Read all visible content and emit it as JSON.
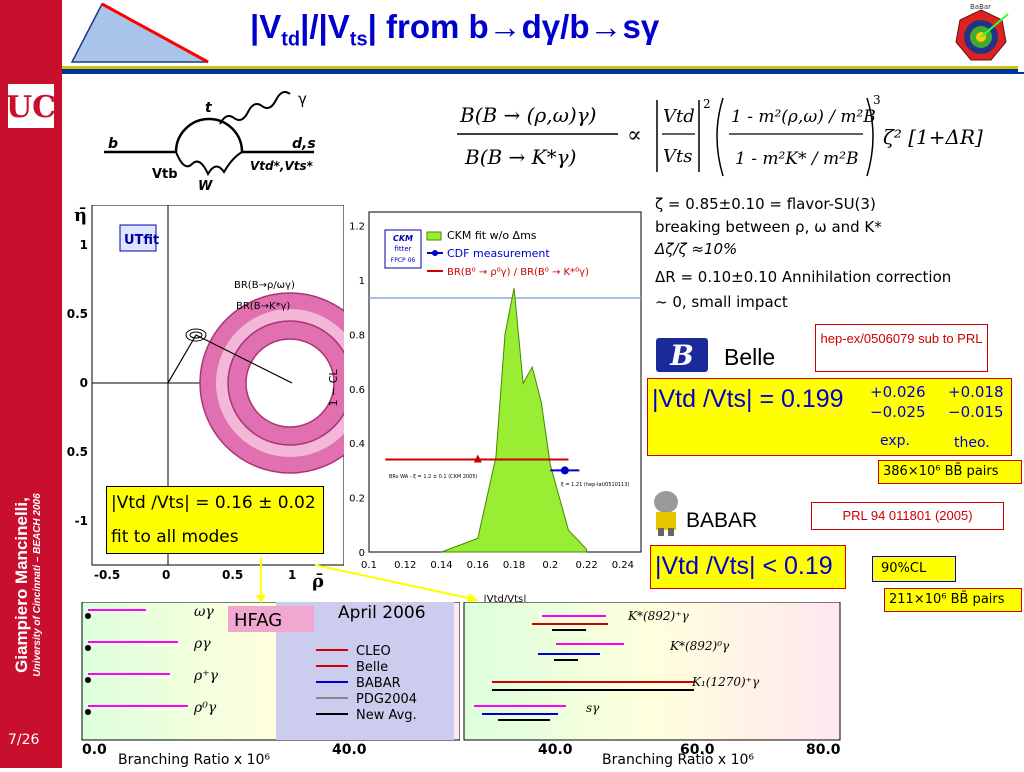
{
  "slide": {
    "title_main": "|V",
    "title_sub1": "td",
    "title_mid": "|/|V",
    "title_sub2": "ts",
    "title_end": "| from b→dγ/b→sγ",
    "author": "Giampiero Mancinelli,",
    "affiliation": "University of Cincinnati – BEACH 2006",
    "page": "7/26",
    "logo_small_text": "BaBar"
  },
  "feynman": {
    "t": "t",
    "gamma": "γ",
    "b": "b",
    "ds": "d,s",
    "vtb": "Vtb",
    "vtdvts": "Vtd*,Vts*",
    "w": "W"
  },
  "formula": {
    "num": "B(B → (ρ,ω)γ)",
    "den": "B(B → K*γ)",
    "prop": "∝",
    "vtd": "Vtd",
    "vts": "Vts",
    "exp": "2",
    "corr_num": "1 - m²(ρ,ω) / m²B",
    "corr_den": "1 - m²K* / m²B",
    "exp3": "3",
    "tail": "ζ² [1+ΔR]"
  },
  "notes": {
    "zeta": "ζ = 0.85±0.10 = flavor-SU(3)",
    "breaking": "breaking between ρ, ω and K*",
    "dzeta": "Δζ/ζ ≈10%",
    "dr": "ΔR = 0.10±0.10 Annihilation correction",
    "impact": "~ 0, small impact"
  },
  "belle": {
    "ref": "hep-ex/0506079 sub to PRL",
    "name": "Belle",
    "result": "|Vtd /Vts| = 0.199",
    "exp_up": "+0.026",
    "exp_dn": "−0.025",
    "th_up": "+0.018",
    "th_dn": "−0.015",
    "exp_lbl": "exp.",
    "th_lbl": "theo.",
    "pairs": "386×10⁶ BB̄ pairs"
  },
  "babar": {
    "name": "BABAR",
    "ref": "PRL 94 011801 (2005)",
    "result": "|Vtd /Vts| < 0.19",
    "cl": "90%CL",
    "pairs": "211×10⁶ BB̄ pairs"
  },
  "utfit": {
    "logo": "UTfit",
    "eta_label": "η̄",
    "rho_label": "ρ̄",
    "legend1": "BR(B→ρ/ωγ)",
    "legend2": "BR(B→K*γ)",
    "yticks": [
      "1",
      "0.5",
      "0",
      "-0.5",
      "-1"
    ],
    "xticks": [
      "-0.5",
      "0",
      "0.5",
      "1"
    ],
    "result": "|Vtd /Vts| = 0.16 ± 0.02",
    "result2": "fit to all modes"
  },
  "ckm": {
    "logo1": "CKM",
    "logo2": "fitter",
    "logo3": "FPCP 06",
    "leg1": "CKM fit w/o Δms",
    "leg2": "CDF measurement",
    "leg3": "BR(B⁰ → ρ⁰γ) / BR(B⁰ → K*⁰γ)",
    "ylabel": "1 − CL",
    "xlabel": "|Vtd/Vts|",
    "note_left": "BRs WA - ξ = 1.2 ± 0.1 (CKM 2005)",
    "note_right": "ξ = 1.21 (hep-lat/0510113)",
    "yticks": [
      "1.2",
      "1",
      "0.8",
      "0.6",
      "0.4",
      "0.2",
      "0"
    ],
    "xticks": [
      "0.1",
      "0.12",
      "0.14",
      "0.16",
      "0.18",
      "0.2",
      "0.22",
      "0.24"
    ]
  },
  "hfag": {
    "label": "HFAG",
    "date": "April 2006",
    "legend": [
      "CLEO",
      "Belle",
      "BABAR",
      "PDG2004",
      "New Avg."
    ],
    "left_modes": [
      "ωγ",
      "ργ",
      "ρ⁺γ",
      "ρ⁰γ"
    ],
    "right_modes": [
      "K*(892)⁺γ",
      "K*(892)⁰γ",
      "K₁(1270)⁺γ",
      "sγ"
    ],
    "xlabel_left": "Branching Ratio x 10⁶",
    "xlabel_right": "Branching Ratio x 10⁶",
    "left_ticks": [
      "0.0",
      "40.0"
    ],
    "right_ticks": [
      "40.0",
      "60.0",
      "80.0"
    ]
  },
  "chart_data": [
    {
      "type": "line",
      "title": "",
      "xlabel": "|Vtd/Vts|",
      "ylabel": "1 − CL",
      "xlim": [
        0.1,
        0.25
      ],
      "ylim": [
        0,
        1.25
      ],
      "series": [
        {
          "name": "CKM fit w/o Δms",
          "x": [
            0.14,
            0.16,
            0.17,
            0.175,
            0.18,
            0.185,
            0.19,
            0.195,
            0.2,
            0.21,
            0.22
          ],
          "y": [
            0.0,
            0.05,
            0.35,
            0.8,
            0.97,
            0.62,
            0.68,
            0.55,
            0.32,
            0.08,
            0.01
          ]
        },
        {
          "name": "CDF measurement",
          "x": [
            0.208
          ],
          "y": [
            0.3
          ],
          "xerr": [
            0.008
          ]
        },
        {
          "name": "BR(B⁰ → ρ⁰γ) / BR(B⁰ → K*⁰γ)",
          "x": [
            0.16
          ],
          "y": [
            0.34
          ],
          "xerr_range": [
            0.109,
            0.21
          ]
        }
      ]
    }
  ],
  "colors": {
    "sidebar": "#c8102e",
    "title": "#0000cc",
    "fit_fill": "#99ee33",
    "pink_ring": "#e060a0"
  }
}
